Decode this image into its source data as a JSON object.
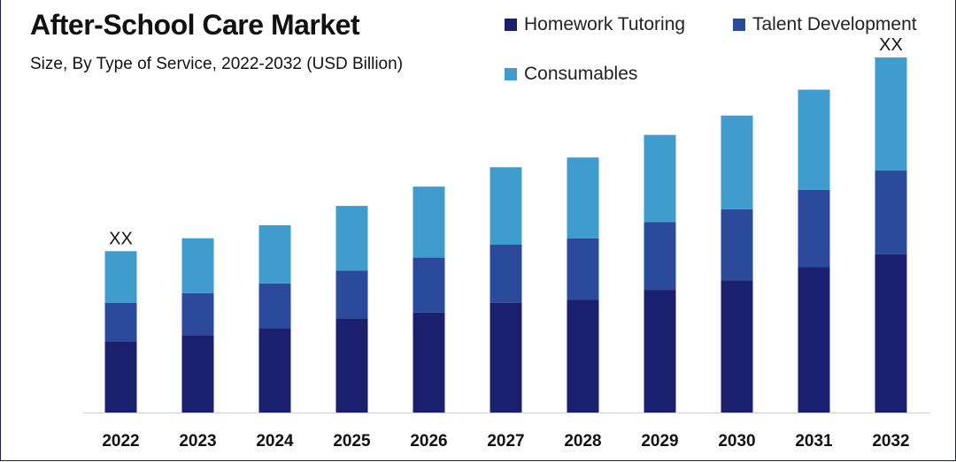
{
  "chart_data": {
    "type": "bar",
    "stacked": true,
    "title": "After-School Care Market",
    "subtitle": "Size, By Type of Service, 2022-2032 (USD Billion)",
    "categories": [
      "2022",
      "2023",
      "2024",
      "2025",
      "2026",
      "2027",
      "2028",
      "2029",
      "2030",
      "2031",
      "2032"
    ],
    "series": [
      {
        "name": "Homework Tutoring",
        "color": "#1a1f6e",
        "values": [
          22,
          24,
          26,
          29,
          31,
          34,
          35,
          38,
          41,
          45,
          49
        ]
      },
      {
        "name": "Talent Development",
        "color": "#2b4a9b",
        "values": [
          12,
          13,
          14,
          15,
          17,
          18,
          19,
          21,
          22,
          24,
          26
        ]
      },
      {
        "name": "Consumables",
        "color": "#3f9ccc",
        "values": [
          16,
          17,
          18,
          20,
          22,
          24,
          25,
          27,
          29,
          31,
          35
        ]
      }
    ],
    "data_labels": {
      "2022": "XX",
      "2032": "XX"
    },
    "ylim": [
      0,
      110
    ],
    "legend": "top-right",
    "grid": false
  }
}
